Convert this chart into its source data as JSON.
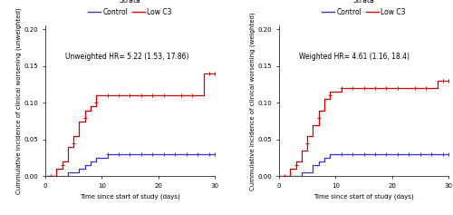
{
  "panel1": {
    "annot": "Unweighted HR= 5.22 (1.53, 17.86)",
    "ylabel": "Cummulative incidence of clinical worsening (unweighted)",
    "xlabel": "Time since start of study (days)",
    "red_x": [
      0,
      2,
      3,
      4,
      5,
      6,
      7,
      8,
      9,
      11,
      12,
      25,
      27,
      28,
      30
    ],
    "red_y": [
      0.0,
      0.01,
      0.02,
      0.04,
      0.055,
      0.075,
      0.09,
      0.095,
      0.11,
      0.11,
      0.11,
      0.11,
      0.11,
      0.14,
      0.14
    ],
    "blue_x": [
      0,
      4,
      6,
      7,
      8,
      9,
      11,
      30
    ],
    "blue_y": [
      0.0,
      0.005,
      0.01,
      0.015,
      0.02,
      0.025,
      0.03,
      0.03
    ],
    "red_censors_x": [
      1,
      3,
      5,
      7,
      9,
      11,
      13,
      15,
      17,
      19,
      21,
      24,
      26,
      29,
      30
    ],
    "red_censors_y": [
      0.0,
      0.015,
      0.045,
      0.08,
      0.1,
      0.11,
      0.11,
      0.11,
      0.11,
      0.11,
      0.11,
      0.11,
      0.11,
      0.14,
      0.14
    ],
    "blue_censors_x": [
      11,
      13,
      15,
      17,
      19,
      21,
      23,
      25,
      27,
      29,
      30
    ],
    "blue_censors_y": [
      0.03,
      0.03,
      0.03,
      0.03,
      0.03,
      0.03,
      0.03,
      0.03,
      0.03,
      0.03,
      0.03
    ],
    "ylim": [
      0,
      0.205
    ],
    "xlim": [
      0,
      30
    ],
    "yticks": [
      0.0,
      0.05,
      0.1,
      0.15,
      0.2
    ]
  },
  "panel2": {
    "annot": "Weighted HR= 4.61 (1.16, 18.4)",
    "ylabel": "Cummulative incidence of clinical worsening (weighted)",
    "xlabel": "Time since start of study (days)",
    "red_x": [
      0,
      2,
      3,
      4,
      5,
      6,
      7,
      8,
      9,
      11,
      12,
      25,
      27,
      28,
      30
    ],
    "red_y": [
      0.0,
      0.01,
      0.02,
      0.035,
      0.055,
      0.07,
      0.09,
      0.105,
      0.115,
      0.12,
      0.12,
      0.12,
      0.12,
      0.13,
      0.13
    ],
    "blue_x": [
      0,
      4,
      6,
      7,
      8,
      9,
      11,
      30
    ],
    "blue_y": [
      0.0,
      0.005,
      0.015,
      0.02,
      0.025,
      0.03,
      0.03,
      0.03
    ],
    "red_censors_x": [
      1,
      3,
      5,
      7,
      9,
      11,
      13,
      15,
      17,
      19,
      21,
      24,
      26,
      29,
      30
    ],
    "red_censors_y": [
      0.0,
      0.015,
      0.045,
      0.08,
      0.11,
      0.12,
      0.12,
      0.12,
      0.12,
      0.12,
      0.12,
      0.12,
      0.12,
      0.13,
      0.13
    ],
    "blue_censors_x": [
      11,
      13,
      15,
      17,
      19,
      21,
      23,
      25,
      27,
      29,
      30
    ],
    "blue_censors_y": [
      0.03,
      0.03,
      0.03,
      0.03,
      0.03,
      0.03,
      0.03,
      0.03,
      0.03,
      0.03,
      0.03
    ],
    "ylim": [
      0,
      0.205
    ],
    "xlim": [
      0,
      30
    ],
    "yticks": [
      0.0,
      0.05,
      0.1,
      0.15,
      0.2
    ]
  },
  "legend_labels": [
    "Control",
    "Low C3"
  ],
  "red_color": "#CC0000",
  "blue_color": "#3333CC",
  "bg_color": "#FFFFFF",
  "annot_fontsize": 5.5,
  "axis_label_fontsize": 5.0,
  "tick_fontsize": 5.0,
  "legend_fontsize": 5.5
}
